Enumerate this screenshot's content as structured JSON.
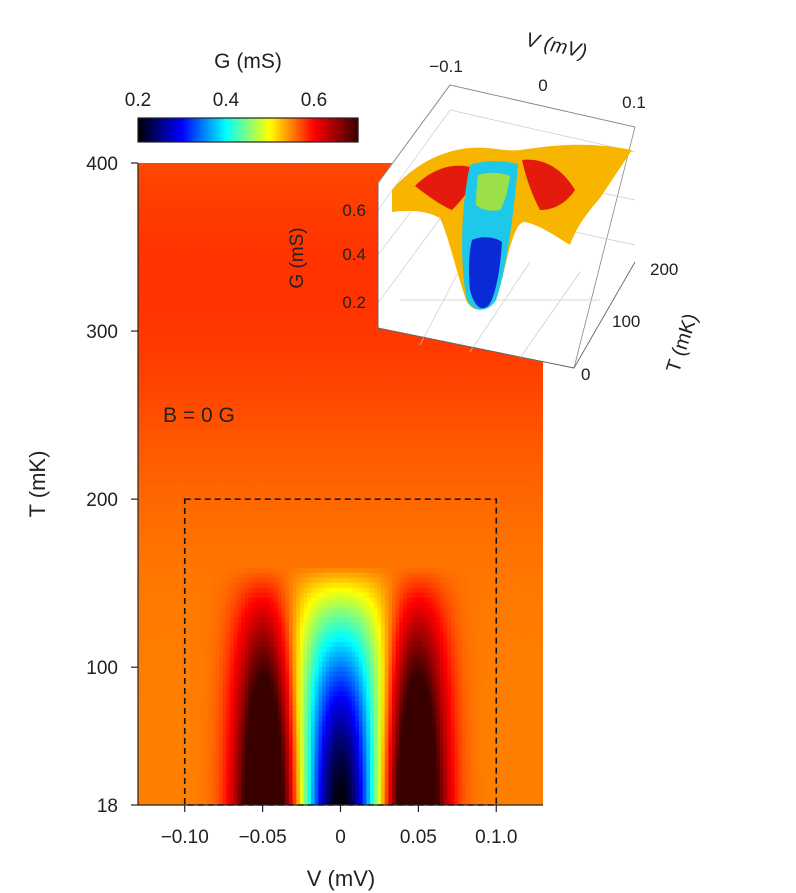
{
  "chart_data": [
    {
      "type": "heatmap",
      "title": "",
      "annotation": "B = 0 G",
      "xlabel": "V (mV)",
      "ylabel": "T (mK)",
      "x_ticks": [
        "−0.10",
        "−0.05",
        "0",
        "0.05",
        "0.1.0"
      ],
      "x_tick_values": [
        -0.1,
        -0.05,
        0,
        0.05,
        0.1
      ],
      "y_ticks": [
        "18",
        "100",
        "200",
        "300",
        "400"
      ],
      "y_tick_values": [
        18,
        100,
        200,
        300,
        400
      ],
      "xlim": [
        -0.13,
        0.13
      ],
      "ylim": [
        18,
        400
      ],
      "dashed_box": {
        "x": [
          -0.1,
          0.1
        ],
        "y": [
          18,
          200
        ]
      },
      "colorbar": {
        "label": "G (mS)",
        "ticks": [
          "0.2",
          "0.4",
          "0.6"
        ],
        "tick_values": [
          0.2,
          0.4,
          0.6
        ],
        "range": [
          0.2,
          0.7
        ],
        "colormap": [
          "#000000",
          "#0000ff",
          "#00ffff",
          "#ffff00",
          "#ff0000",
          "#3a0000"
        ]
      },
      "features": {
        "background_G": 0.55,
        "dip_center_V": 0,
        "dip_min_G_at_18mK": 0.2,
        "peak_V": [
          -0.05,
          0.05
        ],
        "peak_max_G_at_18mK": 0.68,
        "gap_closes_T": 160
      }
    },
    {
      "type": "surface",
      "inset": true,
      "xlabel": "V (mV)",
      "ylabel": "T (mK)",
      "zlabel": "G (mS)",
      "x_ticks": [
        "−0.1",
        "0",
        "0.1"
      ],
      "y_ticks": [
        "0",
        "100",
        "200"
      ],
      "z_ticks": [
        "0.2",
        "0.4",
        "0.6"
      ]
    }
  ]
}
